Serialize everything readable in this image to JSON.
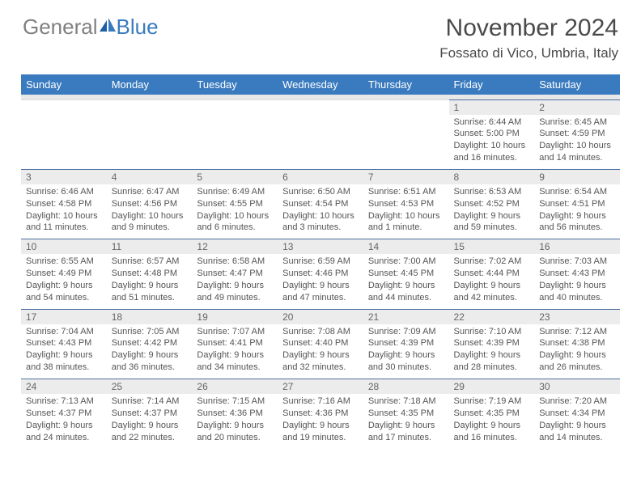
{
  "logo": {
    "text1": "General",
    "text2": "Blue"
  },
  "title": "November 2024",
  "location": "Fossato di Vico, Umbria, Italy",
  "colors": {
    "header_bg": "#3a7bbf",
    "header_text": "#ffffff",
    "num_bg": "#ececec",
    "num_text": "#666666",
    "cell_text": "#555555",
    "rule": "#4a6fa0",
    "logo_gray": "#808080",
    "logo_blue": "#3a7bbf"
  },
  "day_names": [
    "Sunday",
    "Monday",
    "Tuesday",
    "Wednesday",
    "Thursday",
    "Friday",
    "Saturday"
  ],
  "weeks": [
    [
      null,
      null,
      null,
      null,
      null,
      {
        "n": "1",
        "sr": "Sunrise: 6:44 AM",
        "ss": "Sunset: 5:00 PM",
        "d1": "Daylight: 10 hours",
        "d2": "and 16 minutes."
      },
      {
        "n": "2",
        "sr": "Sunrise: 6:45 AM",
        "ss": "Sunset: 4:59 PM",
        "d1": "Daylight: 10 hours",
        "d2": "and 14 minutes."
      }
    ],
    [
      {
        "n": "3",
        "sr": "Sunrise: 6:46 AM",
        "ss": "Sunset: 4:58 PM",
        "d1": "Daylight: 10 hours",
        "d2": "and 11 minutes."
      },
      {
        "n": "4",
        "sr": "Sunrise: 6:47 AM",
        "ss": "Sunset: 4:56 PM",
        "d1": "Daylight: 10 hours",
        "d2": "and 9 minutes."
      },
      {
        "n": "5",
        "sr": "Sunrise: 6:49 AM",
        "ss": "Sunset: 4:55 PM",
        "d1": "Daylight: 10 hours",
        "d2": "and 6 minutes."
      },
      {
        "n": "6",
        "sr": "Sunrise: 6:50 AM",
        "ss": "Sunset: 4:54 PM",
        "d1": "Daylight: 10 hours",
        "d2": "and 3 minutes."
      },
      {
        "n": "7",
        "sr": "Sunrise: 6:51 AM",
        "ss": "Sunset: 4:53 PM",
        "d1": "Daylight: 10 hours",
        "d2": "and 1 minute."
      },
      {
        "n": "8",
        "sr": "Sunrise: 6:53 AM",
        "ss": "Sunset: 4:52 PM",
        "d1": "Daylight: 9 hours",
        "d2": "and 59 minutes."
      },
      {
        "n": "9",
        "sr": "Sunrise: 6:54 AM",
        "ss": "Sunset: 4:51 PM",
        "d1": "Daylight: 9 hours",
        "d2": "and 56 minutes."
      }
    ],
    [
      {
        "n": "10",
        "sr": "Sunrise: 6:55 AM",
        "ss": "Sunset: 4:49 PM",
        "d1": "Daylight: 9 hours",
        "d2": "and 54 minutes."
      },
      {
        "n": "11",
        "sr": "Sunrise: 6:57 AM",
        "ss": "Sunset: 4:48 PM",
        "d1": "Daylight: 9 hours",
        "d2": "and 51 minutes."
      },
      {
        "n": "12",
        "sr": "Sunrise: 6:58 AM",
        "ss": "Sunset: 4:47 PM",
        "d1": "Daylight: 9 hours",
        "d2": "and 49 minutes."
      },
      {
        "n": "13",
        "sr": "Sunrise: 6:59 AM",
        "ss": "Sunset: 4:46 PM",
        "d1": "Daylight: 9 hours",
        "d2": "and 47 minutes."
      },
      {
        "n": "14",
        "sr": "Sunrise: 7:00 AM",
        "ss": "Sunset: 4:45 PM",
        "d1": "Daylight: 9 hours",
        "d2": "and 44 minutes."
      },
      {
        "n": "15",
        "sr": "Sunrise: 7:02 AM",
        "ss": "Sunset: 4:44 PM",
        "d1": "Daylight: 9 hours",
        "d2": "and 42 minutes."
      },
      {
        "n": "16",
        "sr": "Sunrise: 7:03 AM",
        "ss": "Sunset: 4:43 PM",
        "d1": "Daylight: 9 hours",
        "d2": "and 40 minutes."
      }
    ],
    [
      {
        "n": "17",
        "sr": "Sunrise: 7:04 AM",
        "ss": "Sunset: 4:43 PM",
        "d1": "Daylight: 9 hours",
        "d2": "and 38 minutes."
      },
      {
        "n": "18",
        "sr": "Sunrise: 7:05 AM",
        "ss": "Sunset: 4:42 PM",
        "d1": "Daylight: 9 hours",
        "d2": "and 36 minutes."
      },
      {
        "n": "19",
        "sr": "Sunrise: 7:07 AM",
        "ss": "Sunset: 4:41 PM",
        "d1": "Daylight: 9 hours",
        "d2": "and 34 minutes."
      },
      {
        "n": "20",
        "sr": "Sunrise: 7:08 AM",
        "ss": "Sunset: 4:40 PM",
        "d1": "Daylight: 9 hours",
        "d2": "and 32 minutes."
      },
      {
        "n": "21",
        "sr": "Sunrise: 7:09 AM",
        "ss": "Sunset: 4:39 PM",
        "d1": "Daylight: 9 hours",
        "d2": "and 30 minutes."
      },
      {
        "n": "22",
        "sr": "Sunrise: 7:10 AM",
        "ss": "Sunset: 4:39 PM",
        "d1": "Daylight: 9 hours",
        "d2": "and 28 minutes."
      },
      {
        "n": "23",
        "sr": "Sunrise: 7:12 AM",
        "ss": "Sunset: 4:38 PM",
        "d1": "Daylight: 9 hours",
        "d2": "and 26 minutes."
      }
    ],
    [
      {
        "n": "24",
        "sr": "Sunrise: 7:13 AM",
        "ss": "Sunset: 4:37 PM",
        "d1": "Daylight: 9 hours",
        "d2": "and 24 minutes."
      },
      {
        "n": "25",
        "sr": "Sunrise: 7:14 AM",
        "ss": "Sunset: 4:37 PM",
        "d1": "Daylight: 9 hours",
        "d2": "and 22 minutes."
      },
      {
        "n": "26",
        "sr": "Sunrise: 7:15 AM",
        "ss": "Sunset: 4:36 PM",
        "d1": "Daylight: 9 hours",
        "d2": "and 20 minutes."
      },
      {
        "n": "27",
        "sr": "Sunrise: 7:16 AM",
        "ss": "Sunset: 4:36 PM",
        "d1": "Daylight: 9 hours",
        "d2": "and 19 minutes."
      },
      {
        "n": "28",
        "sr": "Sunrise: 7:18 AM",
        "ss": "Sunset: 4:35 PM",
        "d1": "Daylight: 9 hours",
        "d2": "and 17 minutes."
      },
      {
        "n": "29",
        "sr": "Sunrise: 7:19 AM",
        "ss": "Sunset: 4:35 PM",
        "d1": "Daylight: 9 hours",
        "d2": "and 16 minutes."
      },
      {
        "n": "30",
        "sr": "Sunrise: 7:20 AM",
        "ss": "Sunset: 4:34 PM",
        "d1": "Daylight: 9 hours",
        "d2": "and 14 minutes."
      }
    ]
  ]
}
